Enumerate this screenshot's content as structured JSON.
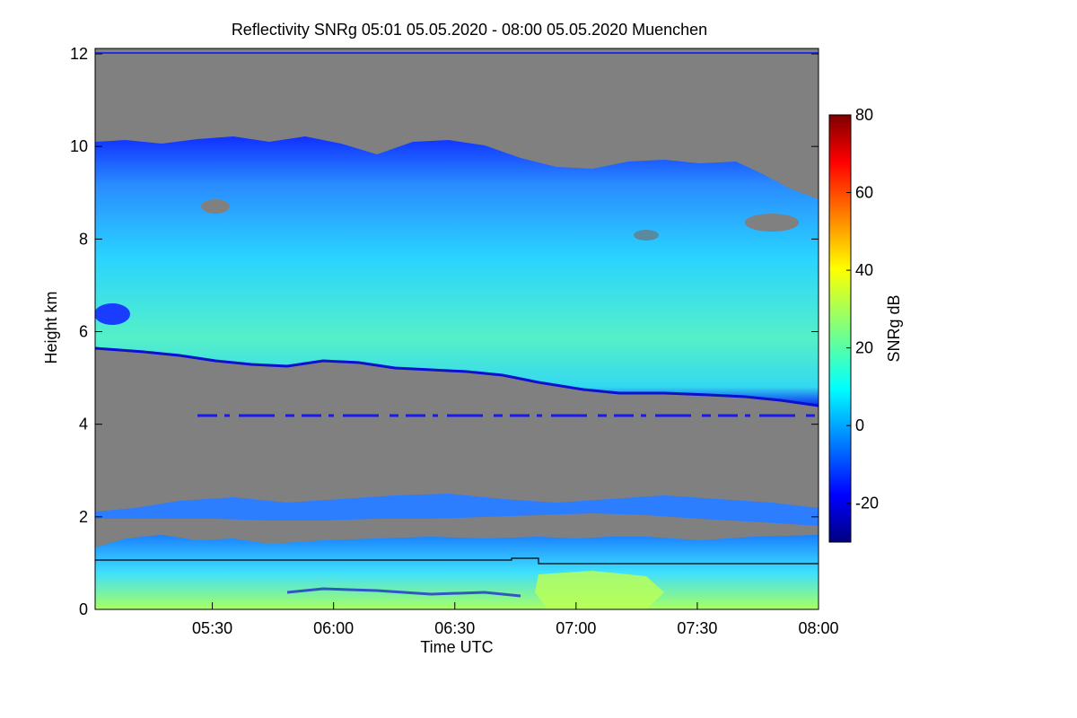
{
  "chart_data": {
    "type": "heatmap",
    "title": "Reflectivity SNRg   05:01 05.05.2020 - 08:00 05.05.2020 Muenchen",
    "xlabel": "Time UTC",
    "ylabel": "Height km",
    "x_range_minutes_utc": [
      301,
      480
    ],
    "xticks": [
      {
        "minute": 330,
        "label": "05:30"
      },
      {
        "minute": 360,
        "label": "06:00"
      },
      {
        "minute": 390,
        "label": "06:30"
      },
      {
        "minute": 420,
        "label": "07:00"
      },
      {
        "minute": 450,
        "label": "07:30"
      },
      {
        "minute": 480,
        "label": "08:00"
      }
    ],
    "ylim_km": [
      0,
      12
    ],
    "yticks": [
      0,
      2,
      4,
      6,
      8,
      10,
      12
    ],
    "no_data_color": "#808080",
    "colorbar": {
      "label": "SNRg dB",
      "range_db": [
        -30,
        80
      ],
      "ticks": [
        -20,
        0,
        20,
        40,
        60,
        80
      ],
      "colormap": "jet"
    },
    "features": [
      {
        "name": "upper cloud layer",
        "minutes": [
          301,
          480
        ],
        "top_km": [
          10.0,
          8.3
        ],
        "base_km": [
          5.6,
          4.5
        ],
        "snr_db_range": [
          -20,
          30
        ]
      },
      {
        "name": "thin layer near 4.1 km",
        "height_km": 4.1,
        "snr_db": -20
      },
      {
        "name": "layer near 2 km",
        "minutes": [
          301,
          480
        ],
        "height_km": [
          1.8,
          2.3
        ],
        "snr_db_range": [
          -15,
          5
        ]
      },
      {
        "name": "boundary layer",
        "minutes": [
          301,
          480
        ],
        "height_km": [
          0,
          1.5
        ],
        "snr_db_range": [
          0,
          40
        ]
      }
    ]
  }
}
